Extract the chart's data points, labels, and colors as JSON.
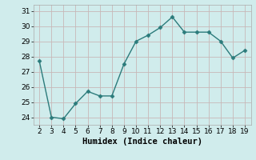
{
  "x": [
    2,
    3,
    4,
    5,
    6,
    7,
    8,
    9,
    10,
    11,
    12,
    13,
    14,
    15,
    16,
    17,
    18,
    19
  ],
  "y": [
    27.7,
    24.0,
    23.9,
    24.9,
    25.7,
    25.4,
    25.4,
    27.5,
    29.0,
    29.4,
    29.9,
    30.6,
    29.6,
    29.6,
    29.6,
    29.0,
    27.9,
    28.4
  ],
  "line_color": "#2b7b7b",
  "marker": "D",
  "marker_size": 2.5,
  "bg_color": "#d0ecec",
  "grid_color": "#c0d8d8",
  "xlabel": "Humidex (Indice chaleur)",
  "ylim": [
    23.5,
    31.4
  ],
  "xlim": [
    1.5,
    19.5
  ],
  "yticks": [
    24,
    25,
    26,
    27,
    28,
    29,
    30,
    31
  ],
  "xticks": [
    2,
    3,
    4,
    5,
    6,
    7,
    8,
    9,
    10,
    11,
    12,
    13,
    14,
    15,
    16,
    17,
    18,
    19
  ],
  "xlabel_fontsize": 7.5,
  "tick_fontsize": 6.5
}
